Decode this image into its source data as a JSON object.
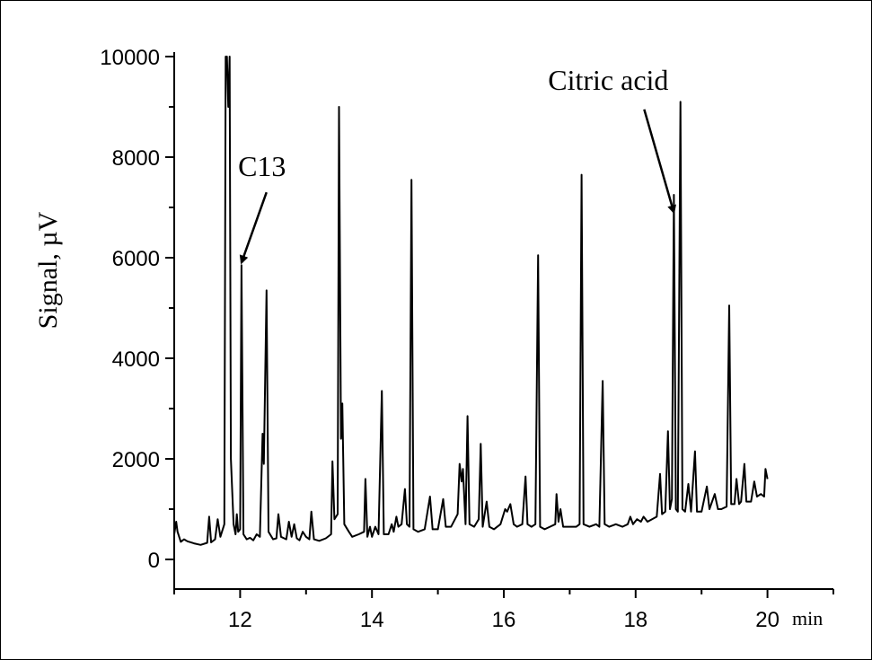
{
  "chart_data": {
    "type": "line",
    "title": "",
    "xlabel": "",
    "x_unit": "min",
    "ylabel": "Signal, µV",
    "xlim": [
      11.0,
      21.0
    ],
    "ylim": [
      -500,
      10000
    ],
    "y_clip": 10000,
    "xticks": [
      12,
      14,
      16,
      18,
      20
    ],
    "yticks": [
      0,
      2000,
      4000,
      6000,
      8000,
      10000
    ],
    "x_tick_labels": [
      "12",
      "14",
      "16",
      "18",
      "20"
    ],
    "y_tick_labels": [
      "0",
      "2000",
      "4000",
      "6000",
      "8000",
      "10000"
    ],
    "grid": false,
    "legend": "none",
    "line_color": "#000000",
    "annotations": [
      {
        "text": "C13",
        "x": 12.02,
        "y": 5900,
        "label_x": 12.4,
        "label_y": 7300
      },
      {
        "text": "Citric acid",
        "x": 18.58,
        "y": 6900,
        "label_x": 18.13,
        "label_y": 8950
      }
    ],
    "series": [
      {
        "values": [
          [
            11.0,
            500
          ],
          [
            11.03,
            750
          ],
          [
            11.05,
            550
          ],
          [
            11.1,
            350
          ],
          [
            11.15,
            400
          ],
          [
            11.2,
            360
          ],
          [
            11.3,
            320
          ],
          [
            11.4,
            290
          ],
          [
            11.5,
            330
          ],
          [
            11.53,
            850
          ],
          [
            11.56,
            340
          ],
          [
            11.62,
            400
          ],
          [
            11.66,
            800
          ],
          [
            11.7,
            450
          ],
          [
            11.76,
            700
          ],
          [
            11.78,
            10000
          ],
          [
            11.8,
            10000
          ],
          [
            11.82,
            9000
          ],
          [
            11.84,
            10000
          ],
          [
            11.86,
            2000
          ],
          [
            11.9,
            700
          ],
          [
            11.93,
            500
          ],
          [
            11.95,
            900
          ],
          [
            11.97,
            550
          ],
          [
            12.0,
            600
          ],
          [
            12.02,
            5850
          ],
          [
            12.05,
            500
          ],
          [
            12.1,
            400
          ],
          [
            12.15,
            430
          ],
          [
            12.2,
            380
          ],
          [
            12.25,
            500
          ],
          [
            12.3,
            450
          ],
          [
            12.34,
            2500
          ],
          [
            12.36,
            1900
          ],
          [
            12.4,
            5350
          ],
          [
            12.43,
            550
          ],
          [
            12.5,
            400
          ],
          [
            12.55,
            420
          ],
          [
            12.58,
            900
          ],
          [
            12.62,
            450
          ],
          [
            12.7,
            400
          ],
          [
            12.74,
            750
          ],
          [
            12.78,
            450
          ],
          [
            12.82,
            700
          ],
          [
            12.86,
            420
          ],
          [
            12.9,
            380
          ],
          [
            12.95,
            550
          ],
          [
            13.0,
            450
          ],
          [
            13.05,
            400
          ],
          [
            13.08,
            950
          ],
          [
            13.12,
            400
          ],
          [
            13.2,
            370
          ],
          [
            13.3,
            420
          ],
          [
            13.38,
            500
          ],
          [
            13.4,
            1950
          ],
          [
            13.43,
            800
          ],
          [
            13.48,
            900
          ],
          [
            13.5,
            9000
          ],
          [
            13.53,
            2400
          ],
          [
            13.55,
            3100
          ],
          [
            13.58,
            700
          ],
          [
            13.65,
            550
          ],
          [
            13.7,
            450
          ],
          [
            13.8,
            500
          ],
          [
            13.88,
            550
          ],
          [
            13.9,
            1600
          ],
          [
            13.93,
            450
          ],
          [
            13.97,
            650
          ],
          [
            14.0,
            450
          ],
          [
            14.05,
            650
          ],
          [
            14.1,
            500
          ],
          [
            14.15,
            3350
          ],
          [
            14.18,
            500
          ],
          [
            14.25,
            500
          ],
          [
            14.3,
            700
          ],
          [
            14.33,
            550
          ],
          [
            14.37,
            850
          ],
          [
            14.4,
            650
          ],
          [
            14.45,
            700
          ],
          [
            14.5,
            1400
          ],
          [
            14.53,
            700
          ],
          [
            14.57,
            650
          ],
          [
            14.6,
            7550
          ],
          [
            14.63,
            600
          ],
          [
            14.7,
            550
          ],
          [
            14.8,
            600
          ],
          [
            14.88,
            1250
          ],
          [
            14.92,
            600
          ],
          [
            15.0,
            600
          ],
          [
            15.08,
            1200
          ],
          [
            15.12,
            650
          ],
          [
            15.2,
            650
          ],
          [
            15.3,
            900
          ],
          [
            15.33,
            1900
          ],
          [
            15.36,
            1550
          ],
          [
            15.38,
            1800
          ],
          [
            15.42,
            700
          ],
          [
            15.45,
            2850
          ],
          [
            15.48,
            700
          ],
          [
            15.55,
            650
          ],
          [
            15.62,
            800
          ],
          [
            15.65,
            2300
          ],
          [
            15.68,
            650
          ],
          [
            15.74,
            1150
          ],
          [
            15.78,
            650
          ],
          [
            15.85,
            600
          ],
          [
            15.95,
            700
          ],
          [
            16.02,
            1000
          ],
          [
            16.05,
            950
          ],
          [
            16.1,
            1100
          ],
          [
            16.15,
            700
          ],
          [
            16.2,
            650
          ],
          [
            16.28,
            700
          ],
          [
            16.33,
            1650
          ],
          [
            16.36,
            700
          ],
          [
            16.42,
            650
          ],
          [
            16.48,
            700
          ],
          [
            16.52,
            6050
          ],
          [
            16.55,
            650
          ],
          [
            16.62,
            600
          ],
          [
            16.7,
            650
          ],
          [
            16.78,
            700
          ],
          [
            16.8,
            1300
          ],
          [
            16.83,
            750
          ],
          [
            16.86,
            1000
          ],
          [
            16.9,
            650
          ],
          [
            17.0,
            650
          ],
          [
            17.1,
            650
          ],
          [
            17.15,
            700
          ],
          [
            17.18,
            7650
          ],
          [
            17.21,
            700
          ],
          [
            17.3,
            650
          ],
          [
            17.4,
            700
          ],
          [
            17.45,
            650
          ],
          [
            17.5,
            3550
          ],
          [
            17.53,
            700
          ],
          [
            17.6,
            650
          ],
          [
            17.7,
            700
          ],
          [
            17.8,
            650
          ],
          [
            17.88,
            700
          ],
          [
            17.92,
            850
          ],
          [
            17.96,
            700
          ],
          [
            18.02,
            800
          ],
          [
            18.08,
            750
          ],
          [
            18.12,
            850
          ],
          [
            18.18,
            750
          ],
          [
            18.25,
            800
          ],
          [
            18.32,
            850
          ],
          [
            18.37,
            1700
          ],
          [
            18.4,
            900
          ],
          [
            18.45,
            950
          ],
          [
            18.49,
            2550
          ],
          [
            18.52,
            1000
          ],
          [
            18.55,
            1200
          ],
          [
            18.58,
            7250
          ],
          [
            18.61,
            1000
          ],
          [
            18.64,
            950
          ],
          [
            18.68,
            9100
          ],
          [
            18.71,
            1000
          ],
          [
            18.75,
            950
          ],
          [
            18.8,
            1500
          ],
          [
            18.84,
            950
          ],
          [
            18.9,
            2150
          ],
          [
            18.93,
            950
          ],
          [
            19.0,
            950
          ],
          [
            19.08,
            1450
          ],
          [
            19.12,
            1000
          ],
          [
            19.2,
            1300
          ],
          [
            19.25,
            1000
          ],
          [
            19.3,
            1000
          ],
          [
            19.38,
            1050
          ],
          [
            19.42,
            5050
          ],
          [
            19.45,
            1100
          ],
          [
            19.5,
            1100
          ],
          [
            19.53,
            1600
          ],
          [
            19.57,
            1100
          ],
          [
            19.6,
            1150
          ],
          [
            19.65,
            1900
          ],
          [
            19.68,
            1150
          ],
          [
            19.75,
            1150
          ],
          [
            19.8,
            1550
          ],
          [
            19.84,
            1250
          ],
          [
            19.9,
            1300
          ],
          [
            19.95,
            1250
          ],
          [
            19.97,
            1800
          ],
          [
            20.0,
            1600
          ]
        ]
      }
    ]
  }
}
